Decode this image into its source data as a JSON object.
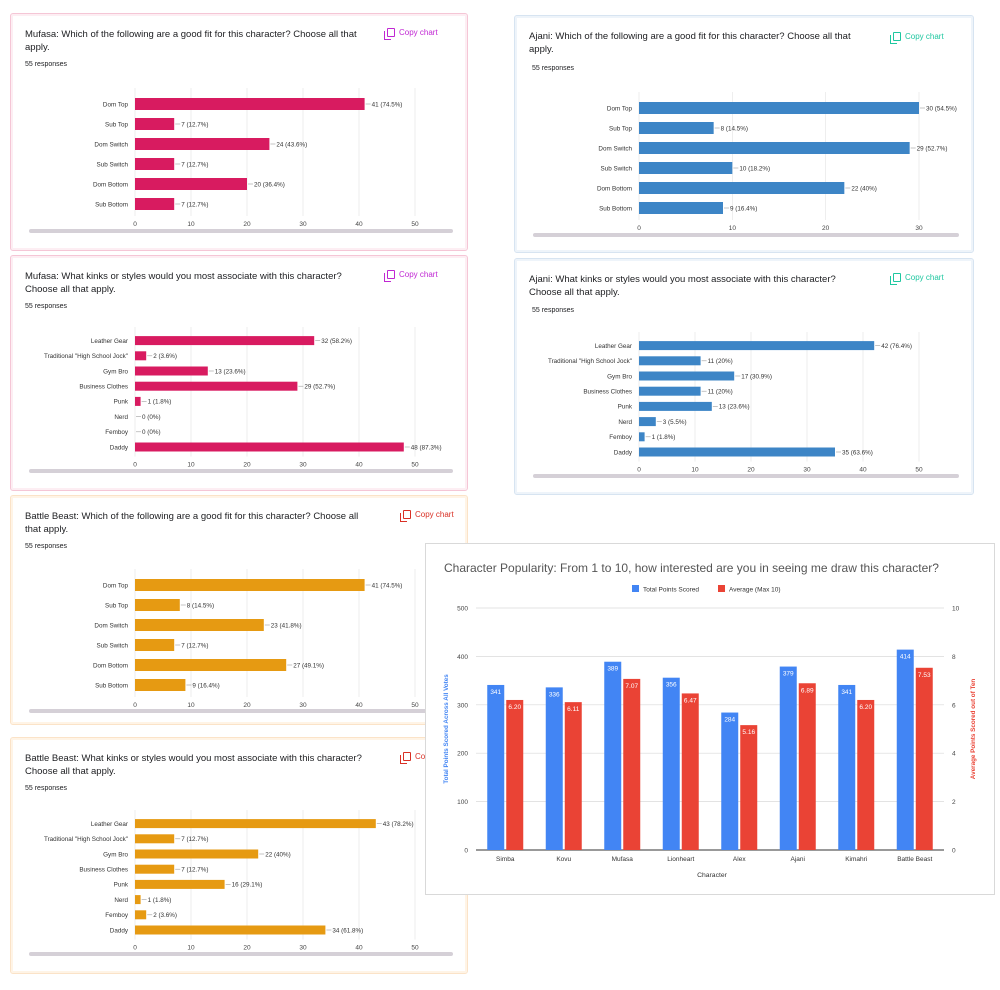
{
  "response_label": "55 responses",
  "copy_label": "Copy chart",
  "colors": {
    "pink": "#d81b60",
    "blue": "#3d85c6",
    "orange": "#e69a12",
    "red": "#ea4335",
    "google_blue": "#4285f4",
    "copy_purple": "#c026d3",
    "copy_teal": "#1fc7a0",
    "copy_red": "#d93025"
  },
  "chart_data": [
    {
      "type": "bar",
      "title": "Mufasa:  Which of the following are a good fit for this character? Choose all that apply.",
      "categories": [
        "Dom Top",
        "Sub Top",
        "Dom Switch",
        "Sub Switch",
        "Dom Bottom",
        "Sub Bottom"
      ],
      "values": [
        41,
        7,
        24,
        7,
        20,
        7
      ],
      "labels": [
        "41 (74.5%)",
        "7 (12.7%)",
        "24 (43.6%)",
        "7 (12.7%)",
        "20 (36.4%)",
        "7 (12.7%)"
      ],
      "ticks": [
        0,
        10,
        20,
        30,
        40,
        50
      ],
      "xlim": [
        0,
        50
      ]
    },
    {
      "type": "bar",
      "title": "Mufasa:  What kinks or styles would you most associate with this character? Choose all that apply.",
      "categories": [
        "Leather Gear",
        "Traditional \"High School Jock\"",
        "Gym Bro",
        "Business Clothes",
        "Punk",
        "Nerd",
        "Femboy",
        "Daddy"
      ],
      "values": [
        32,
        2,
        13,
        29,
        1,
        0,
        0,
        48
      ],
      "labels": [
        "32 (58.2%)",
        "2 (3.6%)",
        "13 (23.6%)",
        "29 (52.7%)",
        "1 (1.8%)",
        "0 (0%)",
        "0 (0%)",
        "48 (87.3%)"
      ],
      "ticks": [
        0,
        10,
        20,
        30,
        40,
        50
      ],
      "xlim": [
        0,
        50
      ]
    },
    {
      "type": "bar",
      "title": "Battle Beast: Which of the following are a good fit for this character? Choose all that apply.",
      "categories": [
        "Dom Top",
        "Sub Top",
        "Dom Switch",
        "Sub Switch",
        "Dom Bottom",
        "Sub Bottom"
      ],
      "values": [
        41,
        8,
        23,
        7,
        27,
        9
      ],
      "labels": [
        "41 (74.5%)",
        "8 (14.5%)",
        "23 (41.8%)",
        "7 (12.7%)",
        "27 (49.1%)",
        "9 (16.4%)"
      ],
      "ticks": [
        0,
        10,
        20,
        30,
        40,
        50
      ],
      "xlim": [
        0,
        50
      ]
    },
    {
      "type": "bar",
      "title": "Battle Beast: What kinks or styles would you most associate with this character? Choose all that apply.",
      "categories": [
        "Leather Gear",
        "Traditional \"High School Jock\"",
        "Gym Bro",
        "Business Clothes",
        "Punk",
        "Nerd",
        "Femboy",
        "Daddy"
      ],
      "values": [
        43,
        7,
        22,
        7,
        16,
        1,
        2,
        34
      ],
      "labels": [
        "43 (78.2%)",
        "7 (12.7%)",
        "22 (40%)",
        "7 (12.7%)",
        "16 (29.1%)",
        "1 (1.8%)",
        "2 (3.6%)",
        "34 (61.8%)"
      ],
      "ticks": [
        0,
        10,
        20,
        30,
        40,
        50
      ],
      "xlim": [
        0,
        50
      ]
    },
    {
      "type": "bar",
      "title": "Ajani:  Which of the following are a good fit for this character? Choose all that apply.",
      "categories": [
        "Dom Top",
        "Sub Top",
        "Dom Switch",
        "Sub Switch",
        "Dom Bottom",
        "Sub Bottom"
      ],
      "values": [
        30,
        8,
        29,
        10,
        22,
        9
      ],
      "labels": [
        "30 (54.5%)",
        "8 (14.5%)",
        "29 (52.7%)",
        "10 (18.2%)",
        "22 (40%)",
        "9 (16.4%)"
      ],
      "ticks": [
        0,
        10,
        20,
        30
      ],
      "xlim": [
        0,
        30
      ]
    },
    {
      "type": "bar",
      "title": "Ajani:  What kinks or styles would you most associate with this character? Choose all that apply.",
      "categories": [
        "Leather Gear",
        "Traditional \"High School Jock\"",
        "Gym Bro",
        "Business Clothes",
        "Punk",
        "Nerd",
        "Femboy",
        "Daddy"
      ],
      "values": [
        42,
        11,
        17,
        11,
        13,
        3,
        1,
        35
      ],
      "labels": [
        "42 (76.4%)",
        "11 (20%)",
        "17 (30.9%)",
        "11 (20%)",
        "13 (23.6%)",
        "3 (5.5%)",
        "1 (1.8%)",
        "35 (63.6%)"
      ],
      "ticks": [
        0,
        10,
        20,
        30,
        40,
        50
      ],
      "xlim": [
        0,
        50
      ]
    },
    {
      "type": "bar",
      "title": "Character Popularity: From 1 to 10, how interested are you in seeing me draw this character?",
      "categories": [
        "Simba",
        "Kovu",
        "Mufasa",
        "Lionheart",
        "Alex",
        "Ajani",
        "Kimahri",
        "Battle Beast"
      ],
      "series": [
        {
          "name": "Total Points Scored",
          "axis": "left",
          "values": [
            341,
            336,
            389,
            356,
            284,
            379,
            341,
            414
          ],
          "labels": [
            "341",
            "336",
            "389",
            "356",
            "284",
            "379",
            "341",
            "414"
          ]
        },
        {
          "name": "Average (Max 10)",
          "axis": "right",
          "values": [
            6.2,
            6.11,
            7.07,
            6.47,
            5.16,
            6.89,
            6.2,
            7.53
          ],
          "labels": [
            "6.20",
            "6.11",
            "7.07",
            "6.47",
            "5.16",
            "6.89",
            "6.20",
            "7.53"
          ]
        }
      ],
      "xlabel": "Character",
      "ylabel": "Total Points Scored Across All Votes",
      "y2label": "Average Points Scored out of Ten",
      "ylim": [
        0,
        500
      ],
      "y2lim": [
        0,
        10
      ],
      "yticks": [
        0,
        100,
        200,
        300,
        400,
        500
      ],
      "y2ticks": [
        0,
        2,
        4,
        6,
        8,
        10
      ],
      "legend": "top"
    }
  ]
}
